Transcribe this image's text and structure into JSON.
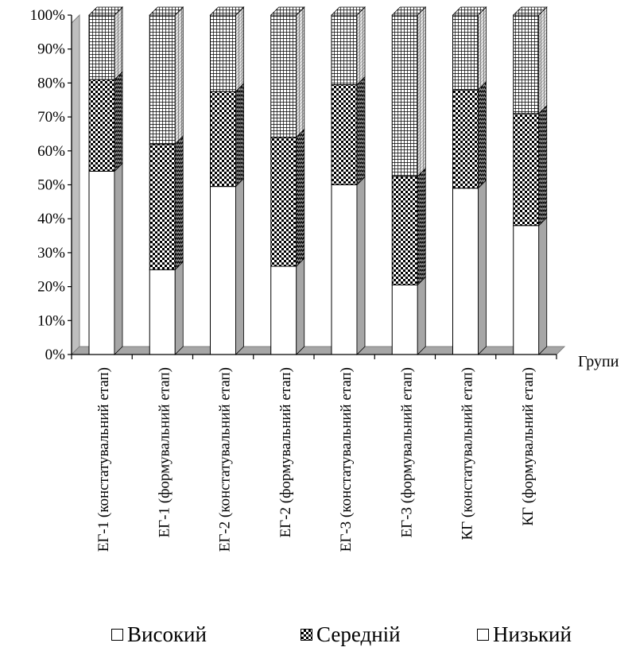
{
  "chart_data": {
    "type": "bar",
    "stacked": true,
    "percent": true,
    "three_d": true,
    "categories": [
      "ЕГ-1 (констатувальний етап)",
      "ЕГ-1 (формувальний етап)",
      "ЕГ-2 (констатувальний етап)",
      "ЕГ-2 (формувальний етап)",
      "ЕГ-3 (констатувальний етап)",
      "ЕГ-3 (формувальний етап)",
      "КГ (констатувальний етап)",
      "КГ (формувальний етап)"
    ],
    "series": [
      {
        "name": "Високий",
        "values": [
          54,
          25,
          49.5,
          26,
          50,
          20.5,
          49,
          38
        ],
        "pattern": "plain",
        "color": "#ffffff"
      },
      {
        "name": "Середній",
        "values": [
          27,
          37,
          28,
          38,
          29.5,
          32,
          29,
          33
        ],
        "pattern": "checker",
        "color": "#000000"
      },
      {
        "name": "Низький",
        "values": [
          19,
          38,
          22.5,
          36,
          20.5,
          47.5,
          22,
          29
        ],
        "pattern": "grid",
        "color": "#ffffff"
      }
    ],
    "y_ticks": [
      "0%",
      "10%",
      "20%",
      "30%",
      "40%",
      "50%",
      "60%",
      "70%",
      "80%",
      "90%",
      "100%"
    ],
    "ylim": [
      0,
      100
    ],
    "xlabel": "Групи",
    "ylabel": "",
    "legend_position": "bottom",
    "grid": false
  }
}
